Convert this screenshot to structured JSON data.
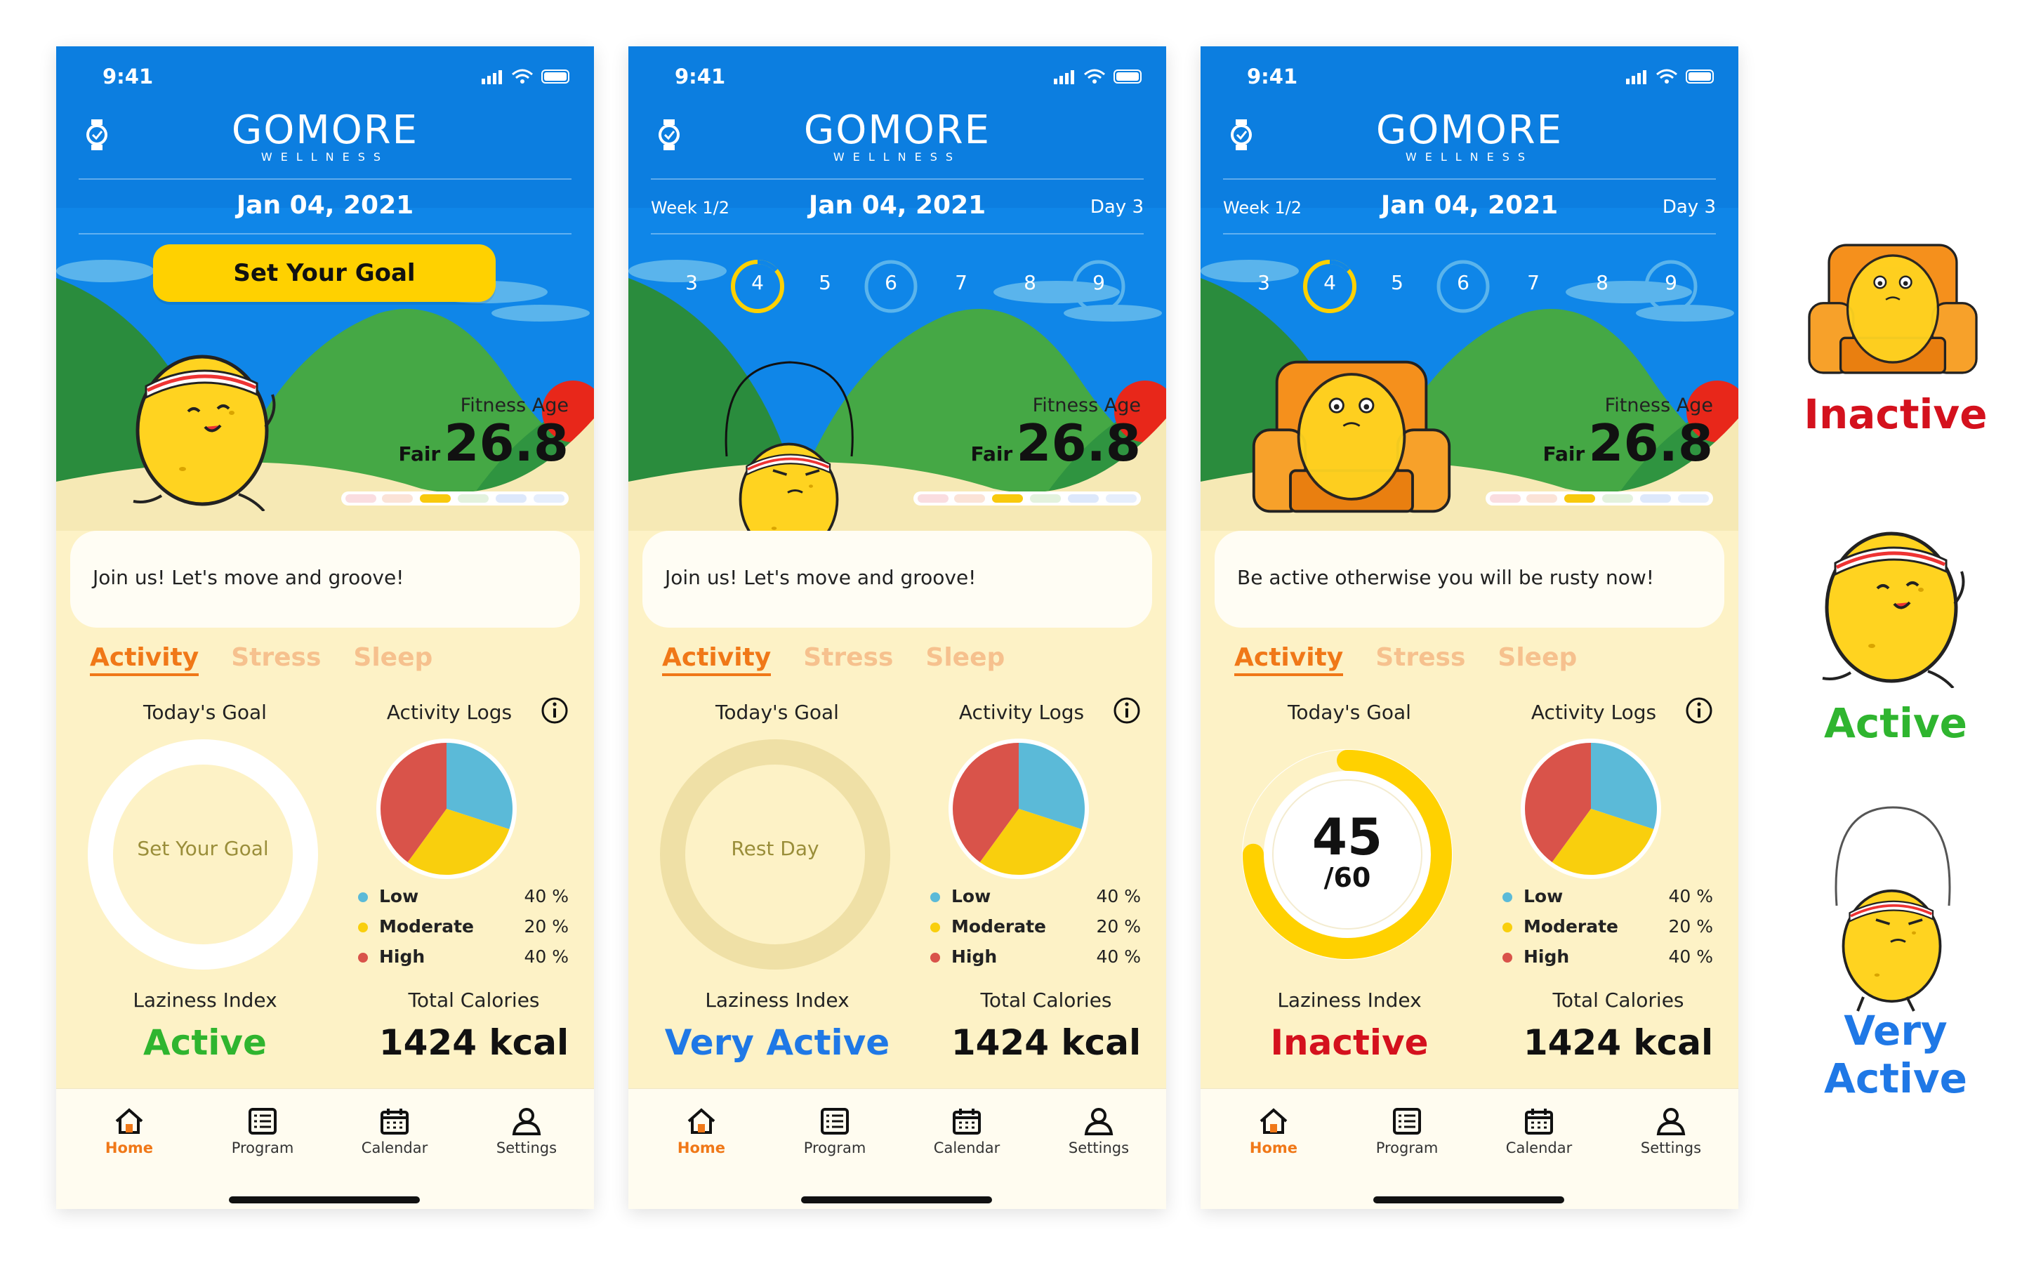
{
  "status_time": "9:41",
  "logo": {
    "name": "GOMORE",
    "subtitle": "WELLNESS"
  },
  "screens": [
    {
      "date": "Jan 04, 2021",
      "week": "",
      "day": "",
      "goal_button": "Set Your Goal",
      "fitness_age": {
        "label": "Fitness Age",
        "rating": "Fair",
        "value": "26.8"
      },
      "message": "Join us! Let's move and groove!",
      "tabs": [
        "Activity",
        "Stress",
        "Sleep"
      ],
      "todays_goal_label": "Today's Goal",
      "activity_logs_label": "Activity Logs",
      "goal_text": "Set Your Goal",
      "legend": [
        {
          "name": "Low",
          "pct": "40 %",
          "color": "#5bbad8"
        },
        {
          "name": "Moderate",
          "pct": "20 %",
          "color": "#f9cf0d"
        },
        {
          "name": "High",
          "pct": "40 %",
          "color": "#d9534a"
        }
      ],
      "laziness_label": "Laziness Index",
      "laziness_value": "Active",
      "laziness_color": "#2fb52f",
      "calories_label": "Total Calories",
      "calories_value": "1424 kcal"
    },
    {
      "date": "Jan 04, 2021",
      "week": "Week 1/2",
      "day": "Day 3",
      "day_numbers": [
        "3",
        "4",
        "5",
        "6",
        "7",
        "8",
        "9"
      ],
      "fitness_age": {
        "label": "Fitness Age",
        "rating": "Fair",
        "value": "26.8"
      },
      "message": "Join us! Let's move and groove!",
      "tabs": [
        "Activity",
        "Stress",
        "Sleep"
      ],
      "todays_goal_label": "Today's Goal",
      "activity_logs_label": "Activity Logs",
      "goal_text": "Rest Day",
      "legend": [
        {
          "name": "Low",
          "pct": "40 %",
          "color": "#5bbad8"
        },
        {
          "name": "Moderate",
          "pct": "20 %",
          "color": "#f9cf0d"
        },
        {
          "name": "High",
          "pct": "40 %",
          "color": "#d9534a"
        }
      ],
      "laziness_label": "Laziness Index",
      "laziness_value": "Very Active",
      "laziness_color": "#1f78e6",
      "calories_label": "Total Calories",
      "calories_value": "1424 kcal"
    },
    {
      "date": "Jan 04, 2021",
      "week": "Week 1/2",
      "day": "Day 3",
      "day_numbers": [
        "3",
        "4",
        "5",
        "6",
        "7",
        "8",
        "9"
      ],
      "fitness_age": {
        "label": "Fitness Age",
        "rating": "Fair",
        "value": "26.8"
      },
      "message": "Be active otherwise you will be rusty now!",
      "tabs": [
        "Activity",
        "Stress",
        "Sleep"
      ],
      "todays_goal_label": "Today's Goal",
      "activity_logs_label": "Activity Logs",
      "goal_progress": {
        "value": "45",
        "total": "/60",
        "fraction": 0.75
      },
      "legend": [
        {
          "name": "Low",
          "pct": "40 %",
          "color": "#5bbad8"
        },
        {
          "name": "Moderate",
          "pct": "20 %",
          "color": "#f9cf0d"
        },
        {
          "name": "High",
          "pct": "40 %",
          "color": "#d9534a"
        }
      ],
      "laziness_label": "Laziness Index",
      "laziness_value": "Inactive",
      "laziness_color": "#d4111d",
      "calories_label": "Total Calories",
      "calories_value": "1424 kcal"
    }
  ],
  "nav": [
    "Home",
    "Program",
    "Calendar",
    "Settings"
  ],
  "legend_side": [
    {
      "label": "Inactive",
      "color": "#d4111d",
      "icon": "sofa-potato-icon"
    },
    {
      "label": "Active",
      "color": "#2fb52f",
      "icon": "running-potato-icon"
    },
    {
      "label": "Very Active",
      "color": "#1f78e6",
      "icon": "jumprope-potato-icon"
    }
  ]
}
